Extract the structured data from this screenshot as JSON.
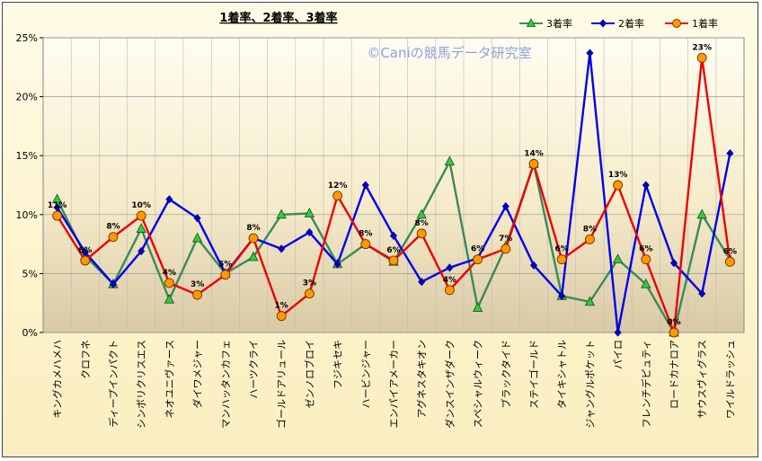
{
  "chart_data": {
    "type": "line",
    "title": "1着率、2着率、3着率",
    "watermark": "©Caniの競馬データ研究室",
    "yticks": [
      "0%",
      "5%",
      "10%",
      "15%",
      "20%",
      "25%"
    ],
    "ylim": [
      0,
      25
    ],
    "grid": true,
    "legend_position": "top-right",
    "categories": [
      "キングカメハメハ",
      "クロフネ",
      "ディープインパクト",
      "シンボリクリスエス",
      "ネオユニヴァース",
      "ダイワメジャー",
      "マンハッタンカフェ",
      "ハーツクライ",
      "ゴールドアリュール",
      "ゼンノロブロイ",
      "フジキセキ",
      "ハービンジャー",
      "エンパイアメーカー",
      "アグネスタキオン",
      "ダンスインザダーク",
      "スペシャルウィーク",
      "ブラックタイド",
      "ステイゴールド",
      "タイキシャトル",
      "ジャングルポケット",
      "パイロ",
      "フレンチデピュティ",
      "ロードカナロア",
      "サウスヴィグラス",
      "ワイルドラッシュ"
    ],
    "series": [
      {
        "name": "3着率",
        "color": "#3a8a5a",
        "marker": "triangle",
        "markerFill": "#33cc33",
        "values": [
          11.3,
          6.5,
          4.1,
          8.8,
          2.8,
          8.0,
          5.0,
          6.4,
          10.0,
          10.1,
          5.8,
          7.5,
          6.0,
          10.0,
          14.5,
          2.1,
          7.3,
          14.3,
          3.1,
          2.6,
          6.2,
          4.1,
          0.0,
          10.0,
          6.2
        ]
      },
      {
        "name": "2着率",
        "color": "#0000ee",
        "marker": "diamond",
        "markerFill": "#0000cc",
        "values": [
          10.6,
          6.8,
          4.1,
          6.9,
          11.3,
          9.7,
          5.0,
          8.0,
          7.1,
          8.5,
          5.8,
          12.5,
          8.2,
          4.3,
          5.5,
          6.3,
          10.7,
          5.7,
          3.1,
          23.7,
          0.0,
          12.5,
          5.9,
          3.3,
          15.2
        ]
      },
      {
        "name": "1着率",
        "color": "#ee0000",
        "marker": "circle",
        "markerFill": "#ff9900",
        "values": [
          9.9,
          6.1,
          8.1,
          9.9,
          4.2,
          3.2,
          4.9,
          8.0,
          1.4,
          3.3,
          11.6,
          7.5,
          6.1,
          8.4,
          3.6,
          6.2,
          7.1,
          14.3,
          6.2,
          7.9,
          12.5,
          6.2,
          0.0,
          23.3,
          6.0
        ]
      }
    ],
    "labels_1st": [
      "10%",
      "6%",
      "8%",
      "10%",
      "4%",
      "3%",
      "5%",
      "8%",
      "1%",
      "3%",
      "12%",
      "8%",
      "6%",
      "8%",
      "4%",
      "6%",
      "7%",
      "14%",
      "6%",
      "8%",
      "13%",
      "6%",
      "0%",
      "23%",
      "6%"
    ],
    "labels_1st_top_series": "11%"
  }
}
